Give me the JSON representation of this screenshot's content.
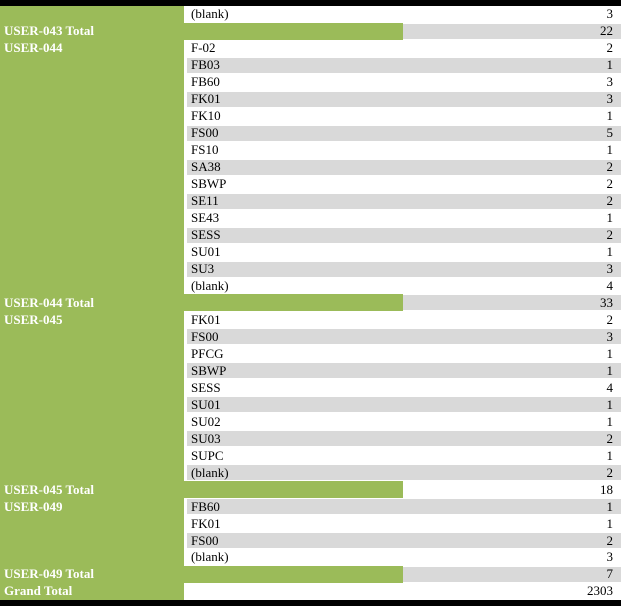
{
  "colors": {
    "accent_green": "#9BBB59",
    "stripe_gray": "#D9D9D9",
    "border_black": "#000000",
    "total_label_text": "#FFFFFF",
    "cell_text": "#000000"
  },
  "chart_data": {
    "type": "table",
    "description_visible_content_only": "pivot-table fragment: user groups, transaction codes, counts",
    "rows": [
      {
        "kind": "data",
        "user": "",
        "tcode": "(blank)",
        "value": 3,
        "shade": false
      },
      {
        "kind": "total",
        "label": "USER-043 Total",
        "value": 22,
        "shade": true
      },
      {
        "kind": "data",
        "user": "USER-044",
        "tcode": "F-02",
        "value": 2,
        "shade": false
      },
      {
        "kind": "data",
        "user": "",
        "tcode": "FB03",
        "value": 1,
        "shade": true
      },
      {
        "kind": "data",
        "user": "",
        "tcode": "FB60",
        "value": 3,
        "shade": false
      },
      {
        "kind": "data",
        "user": "",
        "tcode": "FK01",
        "value": 3,
        "shade": true
      },
      {
        "kind": "data",
        "user": "",
        "tcode": "FK10",
        "value": 1,
        "shade": false
      },
      {
        "kind": "data",
        "user": "",
        "tcode": "FS00",
        "value": 5,
        "shade": true
      },
      {
        "kind": "data",
        "user": "",
        "tcode": "FS10",
        "value": 1,
        "shade": false
      },
      {
        "kind": "data",
        "user": "",
        "tcode": "SA38",
        "value": 2,
        "shade": true
      },
      {
        "kind": "data",
        "user": "",
        "tcode": "SBWP",
        "value": 2,
        "shade": false
      },
      {
        "kind": "data",
        "user": "",
        "tcode": "SE11",
        "value": 2,
        "shade": true
      },
      {
        "kind": "data",
        "user": "",
        "tcode": "SE43",
        "value": 1,
        "shade": false
      },
      {
        "kind": "data",
        "user": "",
        "tcode": "SESS",
        "value": 2,
        "shade": true
      },
      {
        "kind": "data",
        "user": "",
        "tcode": "SU01",
        "value": 1,
        "shade": false
      },
      {
        "kind": "data",
        "user": "",
        "tcode": "SU3",
        "value": 3,
        "shade": true
      },
      {
        "kind": "data",
        "user": "",
        "tcode": "(blank)",
        "value": 4,
        "shade": false
      },
      {
        "kind": "total",
        "label": "USER-044 Total",
        "value": 33,
        "shade": true
      },
      {
        "kind": "data",
        "user": "USER-045",
        "tcode": "FK01",
        "value": 2,
        "shade": false
      },
      {
        "kind": "data",
        "user": "",
        "tcode": "FS00",
        "value": 3,
        "shade": true
      },
      {
        "kind": "data",
        "user": "",
        "tcode": "PFCG",
        "value": 1,
        "shade": false
      },
      {
        "kind": "data",
        "user": "",
        "tcode": "SBWP",
        "value": 1,
        "shade": true
      },
      {
        "kind": "data",
        "user": "",
        "tcode": "SESS",
        "value": 4,
        "shade": false
      },
      {
        "kind": "data",
        "user": "",
        "tcode": "SU01",
        "value": 1,
        "shade": true
      },
      {
        "kind": "data",
        "user": "",
        "tcode": "SU02",
        "value": 1,
        "shade": false
      },
      {
        "kind": "data",
        "user": "",
        "tcode": "SU03",
        "value": 2,
        "shade": true
      },
      {
        "kind": "data",
        "user": "",
        "tcode": "SUPC",
        "value": 1,
        "shade": false
      },
      {
        "kind": "data",
        "user": "",
        "tcode": "(blank)",
        "value": 2,
        "shade": true
      },
      {
        "kind": "total",
        "label": "USER-045 Total",
        "value": 18,
        "shade": false
      },
      {
        "kind": "data",
        "user": "USER-049",
        "tcode": "FB60",
        "value": 1,
        "shade": true
      },
      {
        "kind": "data",
        "user": "",
        "tcode": "FK01",
        "value": 1,
        "shade": false
      },
      {
        "kind": "data",
        "user": "",
        "tcode": "FS00",
        "value": 2,
        "shade": true
      },
      {
        "kind": "data",
        "user": "",
        "tcode": "(blank)",
        "value": 3,
        "shade": false
      },
      {
        "kind": "total",
        "label": "USER-049 Total",
        "value": 7,
        "shade": true
      },
      {
        "kind": "grand",
        "label": "Grand Total",
        "value": 2303,
        "shade": false
      }
    ]
  }
}
